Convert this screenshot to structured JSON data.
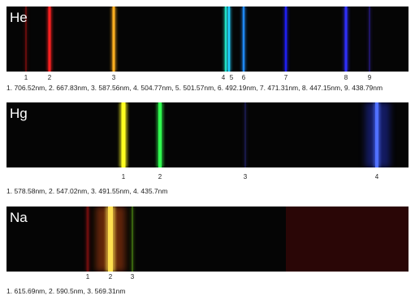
{
  "panels": [
    {
      "element": "He",
      "line_labels": [
        "1",
        "2",
        "3",
        "4",
        "5",
        "6",
        "7",
        "8",
        "9"
      ],
      "caption": "1. 706.52nm, 2. 667.83nm, 3. 587.56nm, 4. 504.77nm, 5. 501.57nm, 6. 492.19nm, 7. 471.31nm, 8. 447.15nm, 9. 438.79nm"
    },
    {
      "element": "Hg",
      "line_labels": [
        "1",
        "2",
        "3",
        "4"
      ],
      "caption": "1. 578.58nm, 2. 547.02nm, 3. 491.55nm, 4. 435.7nm"
    },
    {
      "element": "Na",
      "line_labels": [
        "1",
        "2",
        "3"
      ],
      "caption": "1. 615.69nm, 2. 590.5nm, 3. 569.31nm"
    }
  ]
}
